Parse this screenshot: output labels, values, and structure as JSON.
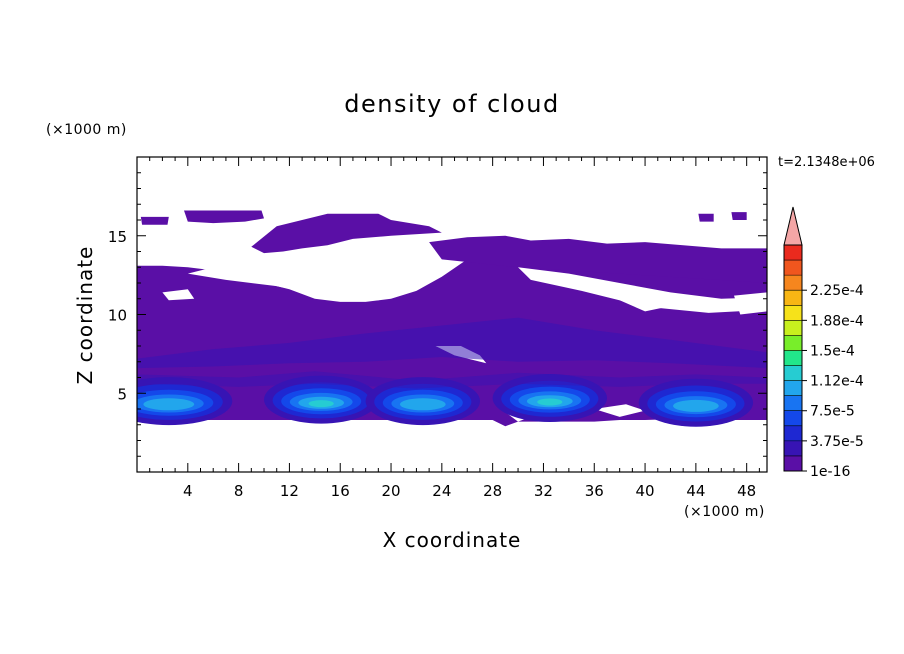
{
  "chart_data": {
    "type": "heatmap",
    "title": "density of cloud",
    "xlabel": "X coordinate",
    "ylabel": "Z coordinate",
    "x_unit": "(×1000 m)",
    "y_unit": "(×1000 m)",
    "time_label": "t=2.1348e+06",
    "xlim": [
      0,
      49.6
    ],
    "ylim": [
      0,
      20
    ],
    "x_ticks": [
      4,
      8,
      12,
      16,
      20,
      24,
      28,
      32,
      36,
      40,
      44,
      48
    ],
    "y_ticks": [
      5,
      10,
      15
    ],
    "grid": false,
    "colorbar": {
      "position": "right",
      "tick_labels": [
        "2.25e-4",
        "1.88e-4",
        "1.5e-4",
        "1.12e-4",
        "7.5e-5",
        "3.75e-5",
        "1e-16"
      ],
      "colors": [
        "#5a0fa6",
        "#3714b4",
        "#1e28d2",
        "#1448ea",
        "#1874f2",
        "#22a6ec",
        "#26ccd2",
        "#22e68a",
        "#78ee2a",
        "#c8f01e",
        "#f6e21a",
        "#f8b614",
        "#f6861e",
        "#f0561e",
        "#ea2a1e"
      ],
      "extend_color": "#f4a6a6"
    },
    "regions": {
      "main_layer": {
        "value_level": 0,
        "color": "#5a0fa6",
        "x_range": [
          0,
          49.6
        ],
        "z_range": [
          3.3,
          13.1
        ]
      },
      "upper_patches": [
        {
          "x": [
            4,
            10
          ],
          "z": [
            16.0,
            16.6
          ]
        },
        {
          "x": [
            11,
            23
          ],
          "z": [
            14.5,
            16.3
          ]
        },
        {
          "x": [
            24,
            49.6
          ],
          "z": [
            11.0,
            14.8
          ]
        }
      ],
      "cloud_cores": [
        {
          "x_center": 2.5,
          "z_center": 4.5,
          "peak": 7.5e-05
        },
        {
          "x_center": 14.5,
          "z_center": 4.6,
          "peak": 0.000112
        },
        {
          "x_center": 22.5,
          "z_center": 4.5,
          "peak": 7.5e-05
        },
        {
          "x_center": 32.5,
          "z_center": 4.7,
          "peak": 0.000112
        },
        {
          "x_center": 44.0,
          "z_center": 4.4,
          "peak": 7.5e-05
        }
      ]
    }
  }
}
